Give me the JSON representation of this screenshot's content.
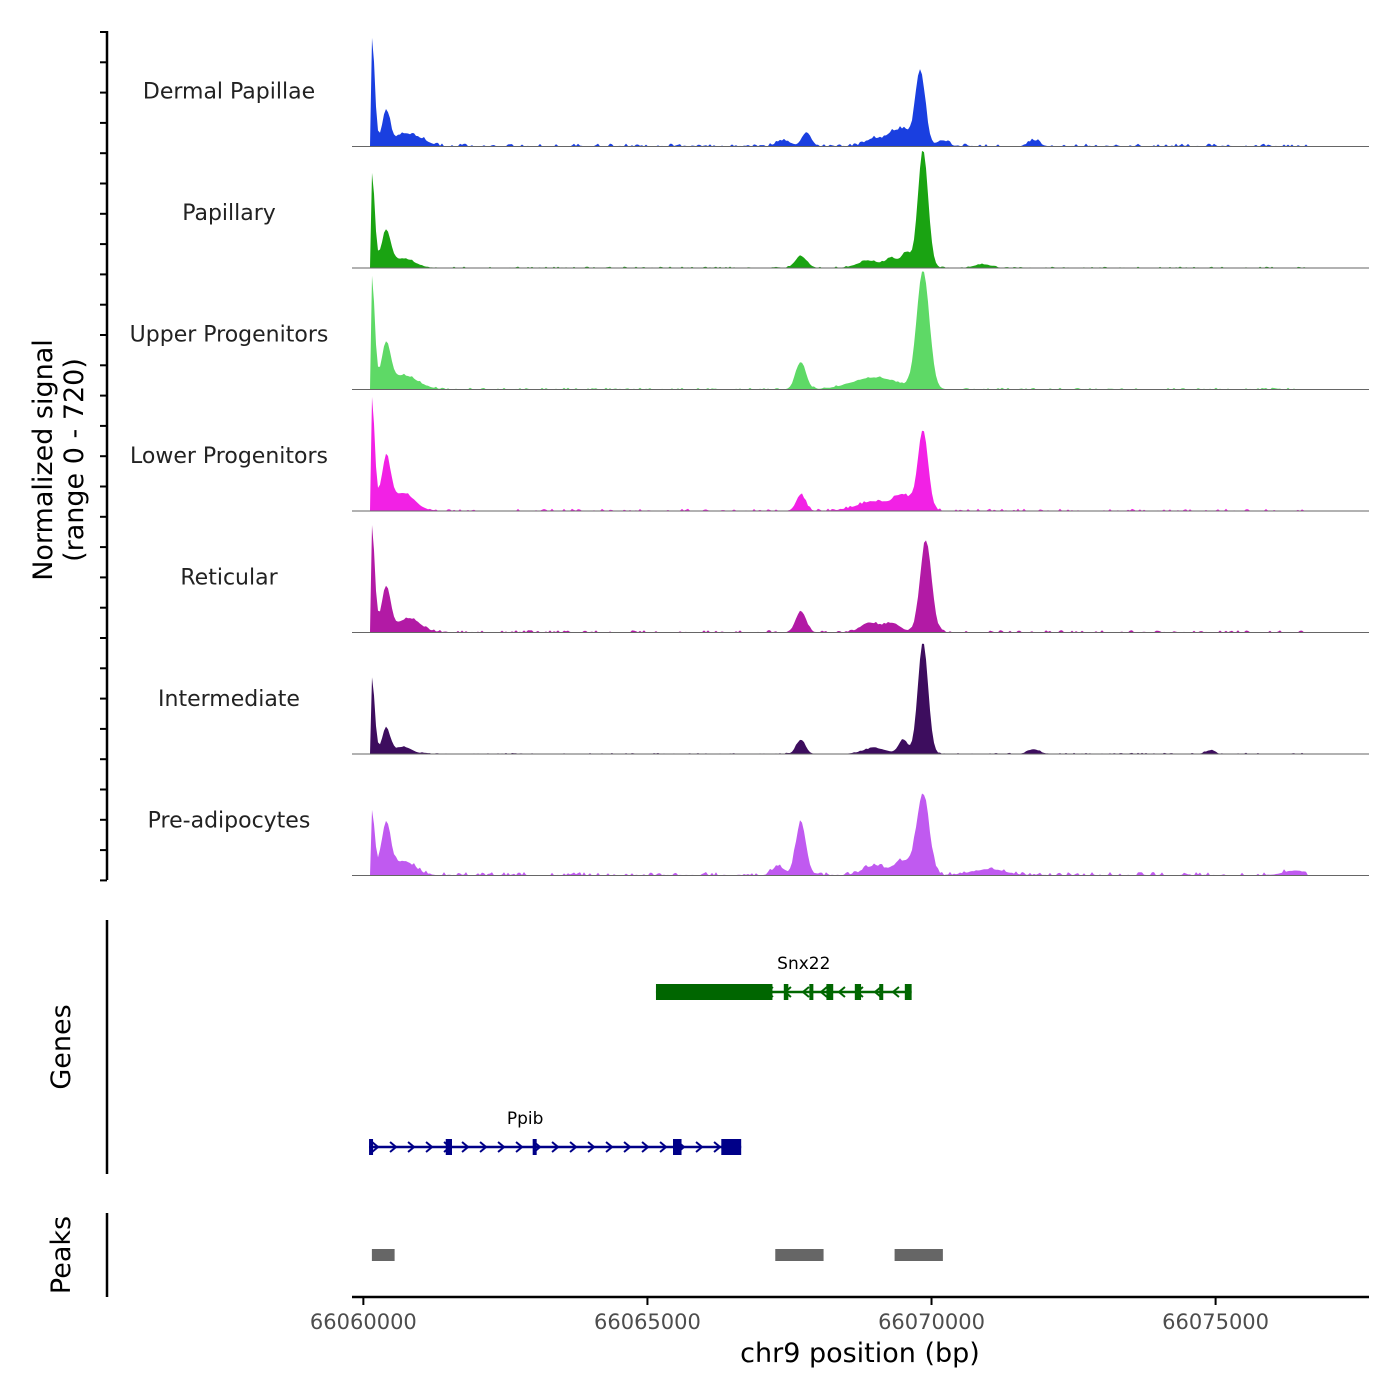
{
  "chart_data": {
    "type": "area",
    "title": "",
    "ylabel_line1": "Normalized signal",
    "ylabel_line2": "(range 0 - 720)",
    "genes_label": "Genes",
    "peaks_label": "Peaks",
    "xlabel": "chr9 position (bp)",
    "xlim": [
      66059800,
      66077700
    ],
    "x_ticks": [
      66060000,
      66065000,
      66070000,
      66075000
    ],
    "x_tick_labels": [
      "66060000",
      "66065000",
      "66070000",
      "66075000"
    ],
    "y_range": [
      0,
      720
    ],
    "tracks": [
      {
        "name": "Dermal Papillae",
        "color": "#1a3fe0",
        "peaks": [
          [
            66060150,
            0.92,
            50
          ],
          [
            66060400,
            0.3,
            70
          ],
          [
            66060700,
            0.1,
            150
          ],
          [
            66061000,
            0.06,
            150
          ],
          [
            66067800,
            0.12,
            80
          ],
          [
            66067400,
            0.05,
            120
          ],
          [
            66069000,
            0.07,
            150
          ],
          [
            66069300,
            0.1,
            100
          ],
          [
            66069500,
            0.13,
            100
          ],
          [
            66069800,
            0.65,
            90
          ],
          [
            66070200,
            0.05,
            100
          ],
          [
            66071800,
            0.05,
            100
          ]
        ],
        "noise": 0.025
      },
      {
        "name": "Papillary",
        "color": "#1aa312",
        "peaks": [
          [
            66060150,
            0.8,
            50
          ],
          [
            66060400,
            0.3,
            80
          ],
          [
            66060700,
            0.08,
            200
          ],
          [
            66067700,
            0.1,
            100
          ],
          [
            66068900,
            0.06,
            200
          ],
          [
            66069300,
            0.08,
            100
          ],
          [
            66069550,
            0.13,
            80
          ],
          [
            66069850,
            1.0,
            90
          ],
          [
            66070900,
            0.03,
            150
          ]
        ],
        "noise": 0.012
      },
      {
        "name": "Upper Progenitors",
        "color": "#5ed966",
        "peaks": [
          [
            66060150,
            0.95,
            50
          ],
          [
            66060400,
            0.35,
            80
          ],
          [
            66060700,
            0.12,
            250
          ],
          [
            66067700,
            0.23,
            90
          ],
          [
            66069000,
            0.1,
            400
          ],
          [
            66069850,
            1.0,
            110
          ]
        ],
        "noise": 0.015
      },
      {
        "name": "Lower Progenitors",
        "color": "#f221e5",
        "peaks": [
          [
            66060150,
            0.95,
            50
          ],
          [
            66060400,
            0.42,
            80
          ],
          [
            66060700,
            0.15,
            200
          ],
          [
            66067700,
            0.14,
            80
          ],
          [
            66069000,
            0.08,
            300
          ],
          [
            66069500,
            0.12,
            150
          ],
          [
            66069850,
            0.68,
            90
          ]
        ],
        "noise": 0.02
      },
      {
        "name": "Reticular",
        "color": "#b21aa5",
        "peaks": [
          [
            66060150,
            0.9,
            50
          ],
          [
            66060400,
            0.38,
            80
          ],
          [
            66060800,
            0.12,
            200
          ],
          [
            66067700,
            0.18,
            90
          ],
          [
            66068900,
            0.08,
            150
          ],
          [
            66069300,
            0.08,
            150
          ],
          [
            66069900,
            0.78,
            100
          ]
        ],
        "noise": 0.02
      },
      {
        "name": "Intermediate",
        "color": "#3d0d5e",
        "peaks": [
          [
            66060150,
            0.65,
            50
          ],
          [
            66060400,
            0.22,
            70
          ],
          [
            66060700,
            0.06,
            150
          ],
          [
            66067700,
            0.12,
            80
          ],
          [
            66069000,
            0.05,
            200
          ],
          [
            66069500,
            0.12,
            80
          ],
          [
            66069850,
            0.95,
            90
          ],
          [
            66071800,
            0.04,
            100
          ],
          [
            66074900,
            0.03,
            80
          ]
        ],
        "noise": 0.01
      },
      {
        "name": "Pre-adipocytes",
        "color": "#c05af0",
        "peaks": [
          [
            66060150,
            0.55,
            50
          ],
          [
            66060400,
            0.42,
            80
          ],
          [
            66060700,
            0.12,
            200
          ],
          [
            66067300,
            0.08,
            100
          ],
          [
            66067700,
            0.45,
            90
          ],
          [
            66069000,
            0.08,
            200
          ],
          [
            66069500,
            0.12,
            150
          ],
          [
            66069850,
            0.68,
            110
          ],
          [
            66071000,
            0.05,
            300
          ],
          [
            66076400,
            0.04,
            200
          ]
        ],
        "noise": 0.03
      }
    ],
    "genes": [
      {
        "name": "Snx22",
        "strand": "-",
        "color": "#006600",
        "start": 66065150,
        "end": 66069650,
        "exons": [
          [
            66065150,
            66067200
          ],
          [
            66067400,
            66067480
          ],
          [
            66067850,
            66067900
          ],
          [
            66068150,
            66068270
          ],
          [
            66068650,
            66068760
          ],
          [
            66069080,
            66069150
          ],
          [
            66069530,
            66069650
          ]
        ]
      },
      {
        "name": "Ppib",
        "strand": "+",
        "color": "#000088",
        "start": 66060100,
        "end": 66066650,
        "exons": [
          [
            66060100,
            66060170
          ],
          [
            66061450,
            66061560
          ],
          [
            66062980,
            66063050
          ],
          [
            66065450,
            66065600
          ],
          [
            66066300,
            66066650
          ]
        ]
      }
    ],
    "peak_regions": [
      [
        66060150,
        66060550
      ],
      [
        66067250,
        66068100
      ],
      [
        66069350,
        66070200
      ]
    ]
  }
}
